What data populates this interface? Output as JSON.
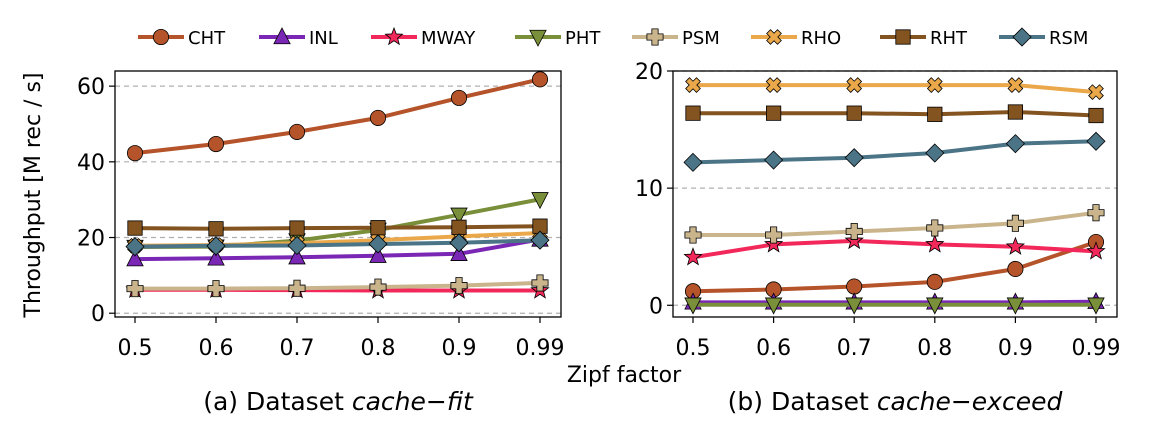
{
  "legend": [
    {
      "name": "CHT",
      "color": "#b5532a",
      "marker": "circle"
    },
    {
      "name": "INL",
      "color": "#7a27b5",
      "marker": "triangle-up"
    },
    {
      "name": "MWAY",
      "color": "#f2285a",
      "marker": "star"
    },
    {
      "name": "PHT",
      "color": "#7a8f3a",
      "marker": "triangle-down"
    },
    {
      "name": "PSM",
      "color": "#c9b48c",
      "marker": "plus"
    },
    {
      "name": "RHO",
      "color": "#eaa84a",
      "marker": "x"
    },
    {
      "name": "RHT",
      "color": "#835320",
      "marker": "square"
    },
    {
      "name": "RSM",
      "color": "#4b7487",
      "marker": "diamond"
    }
  ],
  "ylabel_shared": "Throughput [M rec / s]",
  "xlabel_shared": "Zipf factor",
  "chart_data": [
    {
      "type": "line",
      "caption_prefix": "(a) Dataset ",
      "caption_math": "cache−fit",
      "x_ticks": [
        "0.5",
        "0.6",
        "0.7",
        "0.8",
        "0.9",
        "0.99"
      ],
      "x": [
        0.5,
        0.6,
        0.7,
        0.8,
        0.9,
        0.99
      ],
      "ylim": [
        -1,
        64
      ],
      "y_ticks": [
        0,
        20,
        40,
        60
      ],
      "grid": "horizontal-dashed",
      "series": [
        {
          "name": "CHT",
          "values": [
            42.3,
            44.7,
            47.9,
            51.6,
            56.9,
            61.8
          ]
        },
        {
          "name": "INL",
          "values": [
            14.3,
            14.5,
            14.8,
            15.2,
            15.7,
            19.5
          ]
        },
        {
          "name": "MWAY",
          "values": [
            6.2,
            6.2,
            6.1,
            6.0,
            6.0,
            6.0
          ]
        },
        {
          "name": "PHT",
          "values": [
            17.5,
            17.6,
            19.2,
            22.0,
            26.0,
            30.1
          ]
        },
        {
          "name": "PSM",
          "values": [
            6.5,
            6.5,
            6.6,
            6.9,
            7.3,
            8.0
          ]
        },
        {
          "name": "RHO",
          "values": [
            17.8,
            18.0,
            18.5,
            19.3,
            20.3,
            21.2
          ]
        },
        {
          "name": "RHT",
          "values": [
            22.5,
            22.3,
            22.5,
            22.6,
            22.7,
            23.0
          ]
        },
        {
          "name": "RSM",
          "values": [
            17.6,
            17.8,
            17.9,
            18.3,
            18.6,
            19.3
          ]
        }
      ]
    },
    {
      "type": "line",
      "caption_prefix": "(b) Dataset ",
      "caption_math": "cache−exceed",
      "x_ticks": [
        "0.5",
        "0.6",
        "0.7",
        "0.8",
        "0.9",
        "0.99"
      ],
      "x": [
        0.5,
        0.6,
        0.7,
        0.8,
        0.9,
        0.99
      ],
      "ylim": [
        -1,
        20
      ],
      "y_ticks": [
        0,
        10,
        20
      ],
      "grid": "horizontal-dashed",
      "series": [
        {
          "name": "CHT",
          "values": [
            1.2,
            1.35,
            1.6,
            2.0,
            3.1,
            5.4
          ]
        },
        {
          "name": "INL",
          "values": [
            0.25,
            0.25,
            0.25,
            0.25,
            0.25,
            0.3
          ]
        },
        {
          "name": "MWAY",
          "values": [
            4.1,
            5.2,
            5.5,
            5.2,
            5.0,
            4.6
          ]
        },
        {
          "name": "PHT",
          "values": [
            0.05,
            0.05,
            0.05,
            0.05,
            0.05,
            0.05
          ]
        },
        {
          "name": "PSM",
          "values": [
            6.0,
            6.0,
            6.3,
            6.6,
            7.0,
            7.9
          ]
        },
        {
          "name": "RHO",
          "values": [
            18.8,
            18.8,
            18.8,
            18.8,
            18.8,
            18.2
          ]
        },
        {
          "name": "RHT",
          "values": [
            16.4,
            16.4,
            16.4,
            16.3,
            16.5,
            16.2
          ]
        },
        {
          "name": "RSM",
          "values": [
            12.2,
            12.4,
            12.6,
            13.0,
            13.8,
            14.0
          ]
        }
      ]
    }
  ]
}
